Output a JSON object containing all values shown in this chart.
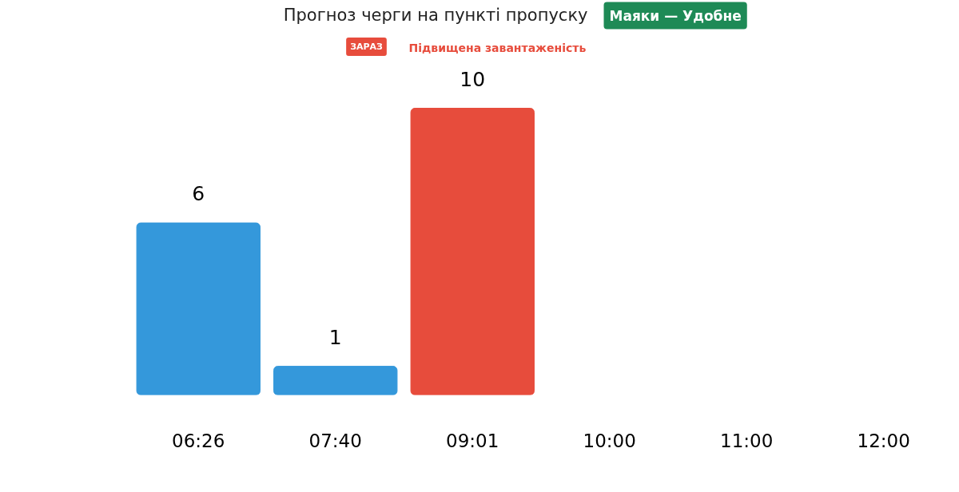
{
  "chart_data": {
    "type": "bar",
    "title": "Прогноз черги на пункті пропуску",
    "subtitle": "Маяки — Удобне",
    "annotations": [
      "ЗАРАЗ",
      "Підвищена завантаженість"
    ],
    "categories": [
      "06:26",
      "07:40",
      "09:01",
      "10:00",
      "11:00",
      "12:00"
    ],
    "values": [
      6,
      1,
      10,
      null,
      null,
      null
    ],
    "colors": [
      "#3498db",
      "#3498db",
      "#e74c3c",
      null,
      null,
      null
    ],
    "data_labels": true
  }
}
